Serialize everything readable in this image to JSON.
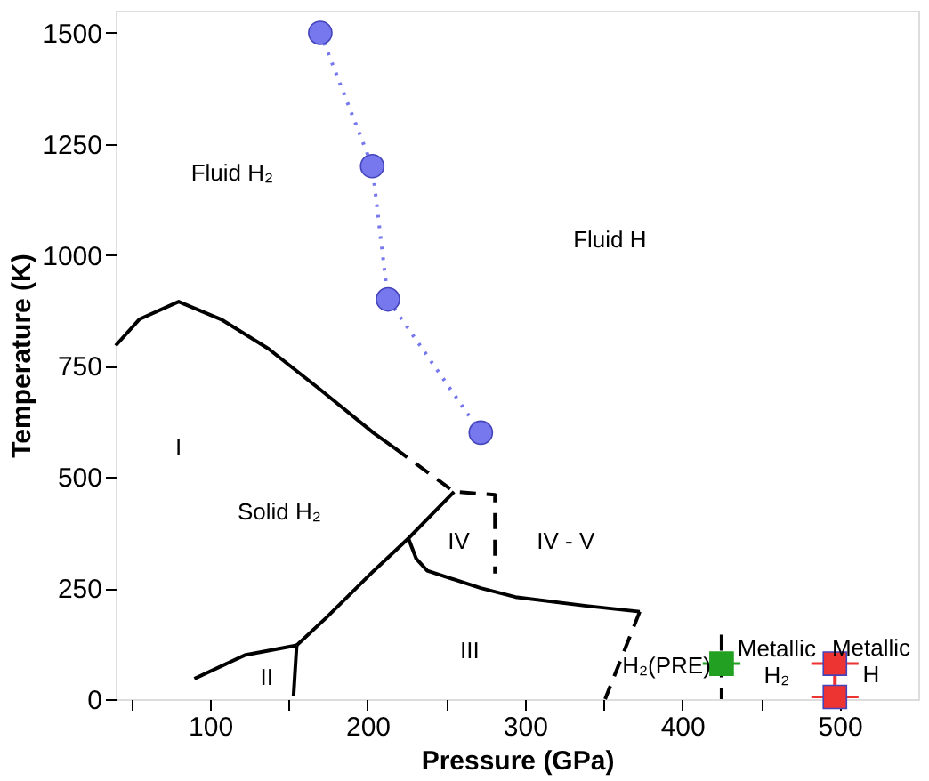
{
  "chart_data": {
    "type": "line",
    "xlabel": "Pressure (GPa)",
    "ylabel": "Temperature (K)",
    "xlim": [
      40,
      550
    ],
    "ylim": [
      0,
      1550
    ],
    "xticks": [
      {
        "value": 50,
        "label": null
      },
      100,
      {
        "value": 150,
        "label": null
      },
      200,
      {
        "value": 250,
        "label": null
      },
      300,
      {
        "value": 350,
        "label": null
      },
      400,
      {
        "value": 450,
        "label": null
      },
      500
    ],
    "yticks": [
      0,
      250,
      500,
      750,
      1000,
      1250,
      1500
    ],
    "grid": false,
    "series": [
      {
        "color": "#000000",
        "line_style": "solid",
        "x": [
          40,
          55,
          80,
          107,
          137,
          170,
          204,
          217
        ],
        "values": [
          796,
          855,
          895,
          855,
          789,
          697,
          599,
          566
        ]
      },
      {
        "type": "line",
        "color": "#000000",
        "line_style": "dashed",
        "x": [
          217,
          255,
          281,
          281
        ],
        "values": [
          566,
          467,
          460,
          283
        ]
      },
      {
        "type": "line",
        "color": "#000000",
        "line_style": "solid",
        "x": [
          90,
          122,
          155
        ],
        "values": [
          46,
          99,
          121
        ]
      },
      {
        "type": "line",
        "color": "#000000",
        "line_style": "solid",
        "x": [
          155,
          153
        ],
        "values": [
          121,
          7
        ]
      },
      {
        "type": "line",
        "color": "#000000",
        "line_style": "solid",
        "x": [
          155,
          174,
          204,
          226,
          255
        ],
        "values": [
          121,
          184,
          289,
          362,
          467
        ]
      },
      {
        "type": "line",
        "color": "#000000",
        "line_style": "solid",
        "x": [
          226,
          231,
          238,
          272,
          294,
          339,
          373
        ],
        "values": [
          362,
          316,
          289,
          250,
          230,
          210,
          197
        ]
      },
      {
        "type": "line",
        "color": "#000000",
        "line_style": "dashed",
        "x": [
          373,
          351
        ],
        "values": [
          197,
          0
        ]
      },
      {
        "type": "line",
        "color": "#000000",
        "line_style": "dashed",
        "x": [
          425,
          425
        ],
        "values": [
          145,
          0
        ]
      },
      {
        "type": "line",
        "color": "#7777ee",
        "line_style": "dotted",
        "marker": "circle",
        "x": [
          170,
          203,
          213,
          272
        ],
        "values": [
          1500,
          1200,
          900,
          600
        ]
      },
      {
        "type": "scatter",
        "color": "#22a022",
        "marker": "square",
        "x": [
          425
        ],
        "values": [
          80
        ],
        "xerrors": [
          12
        ]
      },
      {
        "type": "line",
        "color": "#ee3333",
        "line_style": "solid",
        "marker": "square",
        "x": [
          497,
          497
        ],
        "values": [
          80,
          5
        ],
        "xerrors": [
          15,
          15
        ]
      }
    ],
    "annotations": [
      "Fluid H₂",
      "Fluid H",
      "I",
      "Solid H₂",
      "IV",
      "IV - V",
      "II",
      "III",
      "H₂(PRE)",
      "Metallic\nH₂",
      "Metallic\nH"
    ]
  }
}
